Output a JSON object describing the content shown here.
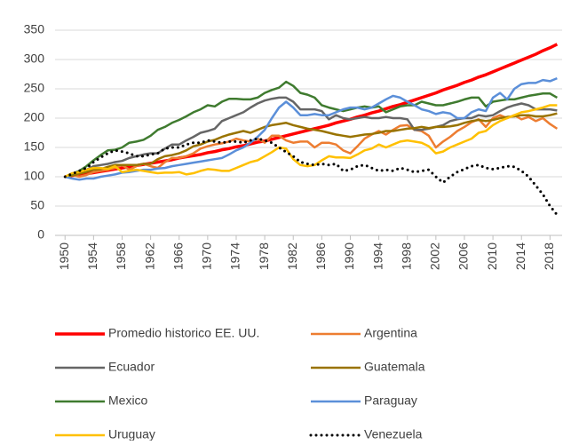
{
  "chart_data": {
    "type": "line",
    "x": [
      1950,
      1951,
      1952,
      1953,
      1954,
      1955,
      1956,
      1957,
      1958,
      1959,
      1960,
      1961,
      1962,
      1963,
      1964,
      1965,
      1966,
      1967,
      1968,
      1969,
      1970,
      1971,
      1972,
      1973,
      1974,
      1975,
      1976,
      1977,
      1978,
      1979,
      1980,
      1981,
      1982,
      1983,
      1984,
      1985,
      1986,
      1987,
      1988,
      1989,
      1990,
      1991,
      1992,
      1993,
      1994,
      1995,
      1996,
      1997,
      1998,
      1999,
      2000,
      2001,
      2002,
      2003,
      2004,
      2005,
      2006,
      2007,
      2008,
      2009,
      2010,
      2011,
      2012,
      2013,
      2014,
      2015,
      2016,
      2017,
      2018,
      2019
    ],
    "xlim": [
      1948.6,
      2019.7
    ],
    "xticks": [
      1950,
      1954,
      1958,
      1962,
      1966,
      1970,
      1974,
      1978,
      1982,
      1986,
      1990,
      1994,
      1998,
      2002,
      2006,
      2010,
      2014,
      2018
    ],
    "ylim": [
      0,
      350
    ],
    "yticks": [
      0,
      50,
      100,
      150,
      200,
      250,
      300,
      350
    ],
    "grid": true,
    "legend": "bottom",
    "series": [
      {
        "name": "Promedio historico EE. UU.",
        "color": "#ff0000",
        "width": 3.5,
        "style": "solid",
        "values": [
          100,
          102,
          104,
          105,
          107,
          109,
          111,
          113,
          115,
          117,
          119,
          121,
          123,
          125,
          127,
          129,
          132,
          134,
          136,
          138,
          141,
          143,
          146,
          148,
          151,
          153,
          156,
          159,
          161,
          164,
          167,
          170,
          173,
          176,
          179,
          182,
          185,
          188,
          192,
          195,
          198,
          202,
          205,
          209,
          212,
          216,
          220,
          223,
          227,
          231,
          235,
          239,
          243,
          248,
          252,
          256,
          261,
          265,
          270,
          274,
          279,
          284,
          289,
          294,
          299,
          304,
          309,
          315,
          320,
          326
        ]
      },
      {
        "name": "Argentina",
        "color": "#ed7d31",
        "width": 2.5,
        "style": "solid",
        "values": [
          100,
          103,
          100,
          103,
          108,
          110,
          112,
          115,
          120,
          112,
          118,
          122,
          118,
          115,
          125,
          132,
          132,
          135,
          140,
          148,
          152,
          155,
          157,
          160,
          165,
          162,
          160,
          165,
          158,
          170,
          170,
          162,
          158,
          160,
          160,
          150,
          158,
          158,
          155,
          145,
          140,
          152,
          165,
          172,
          178,
          172,
          180,
          187,
          188,
          180,
          178,
          170,
          150,
          160,
          168,
          178,
          185,
          193,
          198,
          185,
          200,
          205,
          200,
          205,
          198,
          202,
          195,
          200,
          190,
          182
        ]
      },
      {
        "name": "Ecuador",
        "color": "#666666",
        "width": 2.5,
        "style": "solid",
        "values": [
          100,
          103,
          108,
          112,
          118,
          120,
          122,
          125,
          127,
          132,
          135,
          138,
          140,
          140,
          148,
          155,
          155,
          162,
          168,
          175,
          178,
          182,
          195,
          200,
          205,
          210,
          218,
          225,
          230,
          233,
          235,
          235,
          228,
          215,
          215,
          215,
          212,
          198,
          205,
          200,
          198,
          200,
          202,
          200,
          200,
          202,
          200,
          200,
          198,
          180,
          180,
          182,
          185,
          188,
          195,
          198,
          200,
          200,
          205,
          203,
          205,
          212,
          218,
          222,
          225,
          222,
          215,
          215,
          215,
          213
        ]
      },
      {
        "name": "Guatemala",
        "color": "#997300",
        "width": 2.5,
        "style": "solid",
        "values": [
          100,
          102,
          105,
          108,
          112,
          113,
          117,
          120,
          120,
          120,
          120,
          122,
          122,
          130,
          135,
          137,
          140,
          145,
          152,
          155,
          160,
          163,
          168,
          172,
          175,
          178,
          175,
          180,
          185,
          188,
          190,
          192,
          188,
          185,
          182,
          180,
          178,
          175,
          172,
          170,
          168,
          170,
          172,
          173,
          175,
          178,
          178,
          180,
          182,
          183,
          185,
          183,
          185,
          185,
          186,
          188,
          192,
          195,
          197,
          195,
          197,
          200,
          202,
          203,
          205,
          205,
          203,
          203,
          205,
          208
        ]
      },
      {
        "name": "Mexico",
        "color": "#3f7b2f",
        "width": 2.5,
        "style": "solid",
        "values": [
          100,
          105,
          110,
          118,
          128,
          137,
          145,
          146,
          150,
          158,
          160,
          163,
          170,
          180,
          185,
          192,
          197,
          203,
          210,
          215,
          222,
          220,
          228,
          233,
          233,
          232,
          232,
          235,
          243,
          248,
          252,
          262,
          255,
          243,
          240,
          235,
          222,
          218,
          215,
          212,
          215,
          218,
          220,
          218,
          220,
          210,
          215,
          220,
          222,
          222,
          228,
          225,
          222,
          222,
          225,
          228,
          232,
          235,
          235,
          220,
          228,
          230,
          232,
          232,
          235,
          238,
          240,
          242,
          242,
          235
        ]
      },
      {
        "name": "Paraguay",
        "color": "#5b8fd9",
        "width": 2.5,
        "style": "solid",
        "values": [
          100,
          97,
          95,
          97,
          97,
          100,
          102,
          104,
          107,
          108,
          110,
          112,
          112,
          114,
          115,
          118,
          120,
          122,
          124,
          126,
          128,
          130,
          132,
          138,
          145,
          150,
          158,
          168,
          180,
          200,
          218,
          228,
          218,
          205,
          205,
          207,
          205,
          205,
          210,
          215,
          218,
          218,
          215,
          218,
          225,
          232,
          238,
          235,
          228,
          222,
          215,
          212,
          207,
          210,
          208,
          200,
          200,
          210,
          215,
          212,
          235,
          243,
          232,
          250,
          258,
          260,
          260,
          265,
          263,
          268
        ]
      },
      {
        "name": "Uruguay",
        "color": "#ffc000",
        "width": 2.5,
        "style": "solid",
        "values": [
          100,
          106,
          108,
          112,
          115,
          115,
          113,
          118,
          108,
          110,
          112,
          110,
          108,
          106,
          107,
          107,
          108,
          104,
          106,
          110,
          113,
          112,
          110,
          110,
          115,
          120,
          125,
          128,
          135,
          142,
          150,
          148,
          130,
          120,
          118,
          120,
          128,
          135,
          133,
          133,
          132,
          138,
          145,
          148,
          155,
          150,
          155,
          160,
          162,
          160,
          158,
          152,
          140,
          143,
          150,
          155,
          160,
          165,
          175,
          178,
          188,
          195,
          200,
          205,
          210,
          212,
          215,
          218,
          222,
          222
        ]
      },
      {
        "name": "Venezuela",
        "color": "#000000",
        "width": 3,
        "style": "dotted",
        "values": [
          100,
          105,
          110,
          115,
          125,
          133,
          140,
          145,
          143,
          140,
          135,
          135,
          138,
          140,
          148,
          150,
          150,
          155,
          158,
          158,
          162,
          160,
          158,
          160,
          160,
          158,
          162,
          165,
          162,
          158,
          150,
          142,
          135,
          125,
          122,
          120,
          122,
          120,
          122,
          110,
          112,
          118,
          120,
          115,
          110,
          112,
          110,
          115,
          112,
          108,
          110,
          112,
          100,
          90,
          100,
          108,
          113,
          118,
          120,
          115,
          113,
          115,
          118,
          117,
          110,
          100,
          85,
          70,
          50,
          35
        ]
      }
    ]
  }
}
